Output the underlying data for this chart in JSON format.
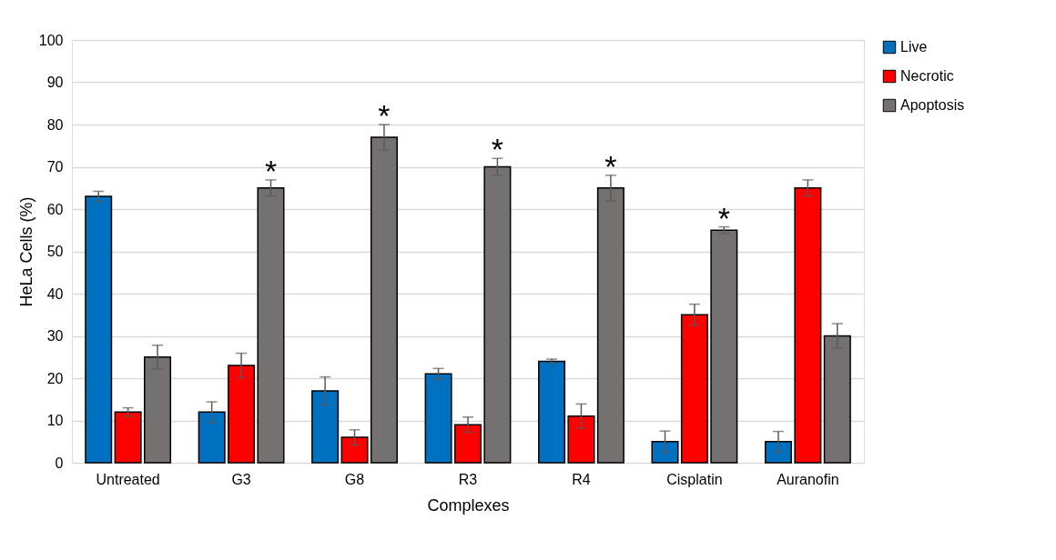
{
  "chart_data": {
    "type": "bar",
    "xlabel": "Complexes",
    "ylabel": "HeLa Cells (%)",
    "categories": [
      "Untreated",
      "G3",
      "G8",
      "R3",
      "R4",
      "Cisplatin",
      "Auranofin"
    ],
    "series": [
      {
        "name": "Live",
        "color": "#0070c0",
        "values": [
          63,
          12,
          17,
          21,
          24,
          5,
          5
        ],
        "errors": [
          1.2,
          2.4,
          3.3,
          1.3,
          0.5,
          2.5,
          2.4
        ]
      },
      {
        "name": "Necrotic",
        "color": "#ff0000",
        "values": [
          12,
          23,
          6,
          9,
          11,
          35,
          65
        ],
        "errors": [
          1,
          2.9,
          1.8,
          1.8,
          2.9,
          2.5,
          1.9
        ]
      },
      {
        "name": "Apoptosis",
        "color": "#767171",
        "values": [
          25,
          65,
          77,
          70,
          65,
          55,
          30
        ],
        "errors": [
          2.8,
          1.9,
          3,
          2,
          3,
          0.8,
          2.9
        ],
        "value_labels": [
          null,
          "*",
          "*",
          "*",
          "*",
          "*",
          null
        ]
      }
    ],
    "ylim": [
      0,
      100
    ],
    "yticks": [
      0,
      10,
      20,
      30,
      40,
      50,
      60,
      70,
      80,
      90,
      100
    ],
    "grid": "y",
    "legend": "right"
  }
}
